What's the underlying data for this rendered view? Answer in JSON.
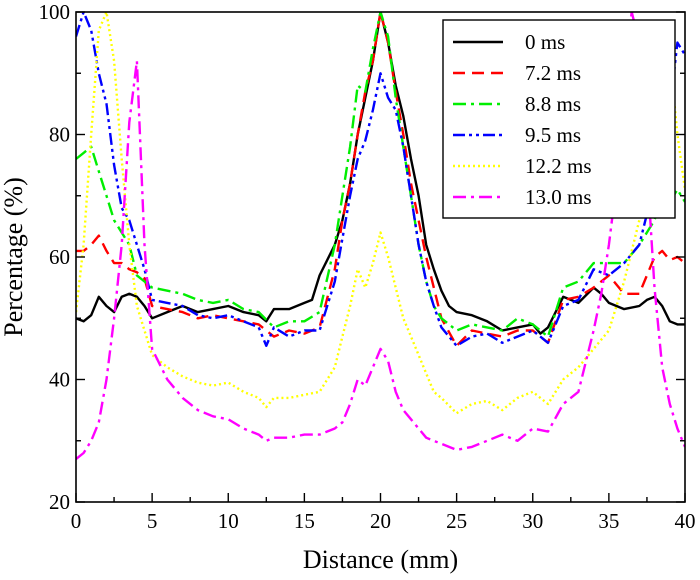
{
  "chart_data": {
    "type": "line",
    "xlabel": "Distance (mm)",
    "ylabel": "Percentage (%)",
    "xlim": [
      0,
      40
    ],
    "ylim": [
      20,
      100
    ],
    "xticks": [
      0,
      5,
      10,
      15,
      20,
      25,
      30,
      35,
      40
    ],
    "yticks": [
      20,
      40,
      60,
      80,
      100
    ],
    "grid": false,
    "legend_position": "top-right",
    "series": [
      {
        "name": "0 ms",
        "color": "#000000",
        "dash": "solid",
        "x": [
          0,
          0.5,
          1,
          1.5,
          2,
          2.5,
          3,
          3.5,
          4,
          4.5,
          5,
          6,
          7,
          8,
          9,
          10,
          11,
          12,
          12.5,
          13,
          14,
          15,
          15.5,
          16,
          17,
          17.5,
          18,
          18.5,
          19,
          19.5,
          20,
          20.5,
          21,
          21.5,
          22,
          22.5,
          23,
          23.5,
          24,
          24.5,
          25,
          26,
          27,
          28,
          29,
          30,
          30.5,
          31,
          31.5,
          32,
          33,
          34,
          34.5,
          35,
          36,
          37,
          37.5,
          38,
          38.5,
          39,
          39.5,
          40
        ],
        "values": [
          50,
          49.5,
          50.5,
          53.5,
          52,
          51,
          53.5,
          54,
          53.5,
          52,
          50,
          51,
          52,
          51,
          51.5,
          52,
          51,
          50.5,
          49.5,
          51.5,
          51.5,
          52.5,
          53,
          57,
          62,
          66,
          72,
          80,
          86,
          92,
          100,
          95,
          88,
          83,
          76,
          70,
          62,
          58,
          54.5,
          52,
          51,
          50.5,
          49.5,
          48,
          48.5,
          49,
          47.5,
          48.5,
          51,
          53.5,
          52.5,
          55,
          54,
          52.5,
          51.5,
          52,
          53,
          53.5,
          52,
          49.5,
          49,
          49
        ]
      },
      {
        "name": "7.2 ms",
        "color": "#ff0000",
        "dash": "dashed",
        "x": [
          0,
          0.5,
          1,
          1.5,
          2,
          2.5,
          3,
          3.5,
          4,
          4.5,
          5,
          6,
          7,
          8,
          9,
          10,
          11,
          12,
          13,
          14,
          15,
          16,
          17,
          17.5,
          18,
          18.5,
          19,
          19.5,
          20,
          20.5,
          21,
          21.5,
          22,
          22.5,
          23,
          23.5,
          24,
          25,
          26,
          27,
          28,
          29,
          30,
          31,
          32,
          33,
          34,
          35,
          36,
          37,
          37.5,
          38,
          38.5,
          39,
          39.5,
          40
        ],
        "values": [
          61,
          61,
          62,
          63.5,
          61,
          59,
          59,
          58,
          57.5,
          56.5,
          52,
          51.5,
          51,
          50,
          50.5,
          50,
          49.5,
          49,
          47,
          48,
          47.5,
          48.5,
          58,
          66,
          72,
          80,
          87,
          92,
          100,
          95,
          87,
          80,
          72,
          66,
          60,
          55,
          50,
          45.5,
          48,
          47.5,
          47,
          48,
          48,
          46,
          53,
          53.5,
          55,
          57,
          54,
          54,
          57,
          60,
          61,
          59.5,
          60,
          59
        ]
      },
      {
        "name": "8.8 ms",
        "color": "#00ee00",
        "dash": "dashdot",
        "x": [
          0,
          0.5,
          1,
          1.5,
          2,
          2.5,
          3,
          3.5,
          4,
          4.5,
          5,
          6,
          7,
          8,
          9,
          10,
          11,
          12,
          13,
          14,
          15,
          16,
          17,
          17.5,
          18,
          18.5,
          19,
          19.5,
          20,
          20.5,
          21,
          21.5,
          22,
          22.5,
          23,
          23.5,
          24,
          25,
          26,
          27,
          28,
          29,
          30,
          31,
          32,
          33,
          34,
          35,
          36,
          37,
          37.5,
          38,
          38.5,
          39,
          39.5,
          40
        ],
        "values": [
          76,
          77,
          78,
          74,
          70,
          66,
          64,
          62,
          57,
          56,
          55,
          54.5,
          54,
          53,
          52.5,
          53,
          51.5,
          51,
          48.5,
          49.5,
          49.5,
          51,
          62,
          70,
          78,
          88,
          87,
          94,
          100,
          96,
          86,
          78,
          70,
          62,
          56,
          52,
          50,
          48,
          49,
          48.5,
          48,
          50,
          49,
          47,
          55,
          56,
          59,
          59,
          59,
          62,
          64,
          66,
          70,
          69,
          71,
          69
        ]
      },
      {
        "name": "9.5 ms",
        "color": "#0000ff",
        "dash": "dashdotdot",
        "x": [
          0,
          0.5,
          1,
          1.5,
          2,
          2.5,
          3,
          3.5,
          4,
          4.5,
          5,
          6,
          7,
          8,
          9,
          10,
          11,
          12,
          12.5,
          13,
          14,
          15,
          16,
          17,
          17.5,
          18,
          18.5,
          19,
          19.5,
          20,
          20.5,
          21,
          21.5,
          22,
          22.5,
          23,
          23.5,
          24,
          25,
          26,
          27,
          28,
          29,
          30,
          31,
          32,
          33,
          34,
          35,
          36,
          37,
          37.5,
          38,
          38.5,
          39,
          39.5,
          40
        ],
        "values": [
          96,
          100,
          97,
          90,
          85,
          75,
          68,
          66,
          62,
          58,
          53,
          52.5,
          52,
          50.5,
          50,
          50.5,
          49.5,
          48.5,
          45.5,
          48.5,
          47,
          48,
          48,
          56,
          63,
          70,
          76,
          79,
          84,
          90,
          86,
          84,
          78,
          70,
          62,
          56,
          52,
          48.5,
          45.5,
          47,
          47.5,
          46,
          47,
          48,
          46,
          52,
          53,
          58,
          57,
          59,
          62,
          67,
          72,
          80,
          84,
          95,
          93
        ]
      },
      {
        "name": "12.2 ms",
        "color": "#ffff00",
        "dash": "dotted",
        "x": [
          0,
          0.5,
          1,
          1.5,
          2,
          2.5,
          3,
          3.5,
          4,
          4.5,
          5,
          6,
          7,
          8,
          9,
          10,
          11,
          12,
          12.5,
          13,
          14,
          15,
          16,
          17,
          17.5,
          18,
          18.5,
          19,
          19.5,
          20,
          20.5,
          21,
          21.5,
          22,
          22.5,
          23,
          23.5,
          24,
          25,
          26,
          27,
          28,
          29,
          30,
          31,
          32,
          33,
          34,
          35,
          36,
          37,
          37.5,
          38,
          38.5,
          39,
          39.5,
          40
        ],
        "values": [
          51,
          62,
          80,
          97,
          100,
          92,
          76,
          62,
          52,
          48,
          44,
          42,
          40.5,
          39.5,
          39,
          39.5,
          38,
          37,
          35.5,
          37,
          37,
          37.5,
          38,
          42,
          47,
          52,
          58,
          55,
          59,
          64,
          60,
          55,
          50,
          47,
          44,
          41,
          38,
          37,
          34.5,
          36,
          36.5,
          35,
          37,
          38,
          36,
          40,
          42,
          45,
          48,
          56,
          66,
          80,
          94,
          92,
          93,
          80,
          71
        ]
      },
      {
        "name": "13.0 ms",
        "color": "#ff00ff",
        "dash": "dashdot",
        "x": [
          0,
          0.5,
          1,
          1.5,
          2,
          2.5,
          3,
          3.5,
          4,
          4.5,
          5,
          6,
          7,
          8,
          9,
          10,
          11,
          12,
          12.5,
          13,
          14,
          15,
          16,
          17,
          17.5,
          18,
          18.5,
          19,
          19.5,
          20,
          20.5,
          21,
          21.5,
          22,
          22.5,
          23,
          23.5,
          24,
          25,
          26,
          27,
          28,
          29,
          30,
          31,
          32,
          33,
          34,
          34.5,
          35,
          35.5,
          36,
          36.5,
          37,
          37.5,
          38,
          38.5,
          39,
          39.5,
          40
        ],
        "values": [
          27,
          28,
          30,
          33,
          40,
          50,
          62,
          82,
          92,
          62,
          45,
          40,
          37,
          35,
          34,
          33.5,
          32,
          31,
          30,
          30.5,
          30.5,
          31,
          31,
          32,
          33,
          36,
          40,
          39,
          42,
          45,
          43,
          38,
          35,
          33.5,
          32,
          30.5,
          30,
          29.5,
          28.5,
          29,
          30,
          31,
          30,
          32,
          31.5,
          36,
          38,
          48,
          54,
          62,
          72,
          88,
          100,
          95,
          75,
          55,
          42,
          36,
          32,
          29
        ]
      }
    ]
  }
}
